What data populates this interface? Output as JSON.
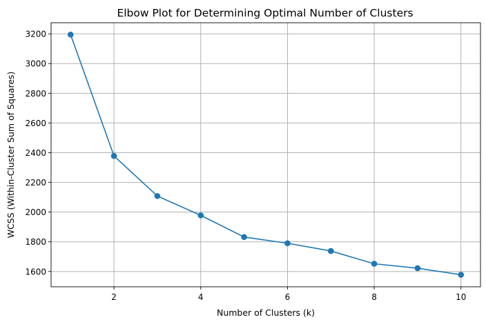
{
  "chart_data": {
    "type": "line",
    "title": "Elbow Plot for Determining Optimal Number of Clusters",
    "xlabel": "Number of Clusters (k)",
    "ylabel": "WCSS (Within-Cluster Sum of Squares)",
    "x": [
      1,
      2,
      3,
      4,
      5,
      6,
      7,
      8,
      9,
      10
    ],
    "series": [
      {
        "values": [
          3195,
          2378,
          2108,
          1978,
          1832,
          1790,
          1738,
          1652,
          1622,
          1578
        ],
        "color": "#1f77b4",
        "marker": "circle"
      }
    ],
    "xlim": [
      0.55,
      10.45
    ],
    "ylim": [
      1497,
      3275
    ],
    "xticks": [
      2,
      4,
      6,
      8,
      10
    ],
    "yticks": [
      1600,
      1800,
      2000,
      2200,
      2400,
      2600,
      2800,
      3000,
      3200
    ],
    "grid": true,
    "legend": false
  }
}
